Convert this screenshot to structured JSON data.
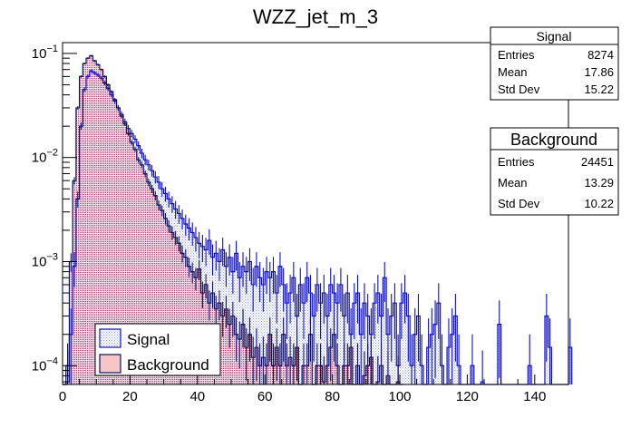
{
  "chart_data": {
    "type": "histogram",
    "title": "WZZ_jet_m_3",
    "xlabel": "",
    "ylabel": "",
    "xlim": [
      0,
      150
    ],
    "ylim": [
      6.6e-05,
      0.127
    ],
    "yscale": "log",
    "bin_width": 1,
    "x_ticks": [
      "0",
      "20",
      "40",
      "60",
      "80",
      "100",
      "120",
      "140"
    ],
    "x_tick_values": [
      0,
      20,
      40,
      60,
      80,
      100,
      120,
      140
    ],
    "y_ticks": [
      {
        "base": "10",
        "exp": "−1",
        "value": 0.1
      },
      {
        "base": "10",
        "exp": "−2",
        "value": 0.01
      },
      {
        "base": "10",
        "exp": "−3",
        "value": 0.001
      },
      {
        "base": "10",
        "exp": "−4",
        "value": 0.0001
      }
    ],
    "legend": {
      "placement": "bottom-left",
      "entries": [
        "Signal",
        "Background"
      ]
    },
    "series": [
      {
        "name": "Signal",
        "line_color": "#1010c0",
        "fill_color": "#8f9fff",
        "stats": {
          "title": "Signal",
          "rows": [
            {
              "label": "Entries",
              "value": "8274"
            },
            {
              "label": "Mean",
              "value": "17.86"
            },
            {
              "label": "Std Dev",
              "value": "15.22"
            }
          ]
        },
        "entries": 8274,
        "values": [
          0,
          7e-05,
          0.0002,
          0.0009,
          0.004,
          0.02,
          0.045,
          0.06,
          0.068,
          0.065,
          0.062,
          0.058,
          0.052,
          0.046,
          0.04,
          0.035,
          0.03,
          0.026,
          0.022,
          0.019,
          0.017,
          0.015,
          0.013,
          0.011,
          0.0095,
          0.0085,
          0.0075,
          0.0065,
          0.0058,
          0.005,
          0.0045,
          0.004,
          0.0036,
          0.0032,
          0.0029,
          0.0026,
          0.0023,
          0.0021,
          0.0019,
          0.0017,
          0.0015,
          0.0014,
          0.0013,
          0.0016,
          0.0011,
          0.0012,
          0.001,
          0.0013,
          0.0009,
          0.0011,
          0.0008,
          0.0012,
          0.0007,
          0.0009,
          0.0008,
          0.001,
          0.0006,
          0.0009,
          0.0007,
          0.0006,
          0.0008,
          0.0007,
          0.0008,
          0.0005,
          0.0009,
          0.0006,
          0.0004,
          0.0005,
          0.0007,
          0.0003,
          0.0006,
          0.0004,
          0.0007,
          0.0005,
          0.0003,
          0.0006,
          0.0004,
          0.0005,
          0.0003,
          0.0006,
          0.0005,
          0.0004,
          0.0006,
          0.0003,
          0.0005,
          0.0002,
          0.0004,
          0.0005,
          0.0002,
          0.0004,
          0.0003,
          0.0002,
          0.0004,
          0.0005,
          0.0003,
          0.0007,
          0.0002,
          0.0003,
          0.0004,
          0.0001,
          0.0004,
          0.0005,
          0.0003,
          0.0001,
          0.0002,
          0.0003,
          0.0001,
          0,
          0.00015,
          0.0002,
          0.00025,
          0.0004,
          0.0001,
          0,
          0.00015,
          0.0002,
          0.0003,
          0.0001,
          0,
          0,
          0,
          0.0001,
          0,
          0,
          7e-05,
          0,
          0,
          0,
          0,
          0.00025,
          0,
          0,
          0,
          0,
          0,
          0,
          0,
          0,
          0.0001,
          0,
          0,
          0,
          0,
          0.0003,
          0.00015,
          0,
          0,
          0,
          0,
          0,
          0.00015
        ]
      },
      {
        "name": "Background",
        "line_color": "#101060",
        "fill_color": "#e07070",
        "stats": {
          "title": "Background",
          "rows": [
            {
              "label": "Entries",
              "value": "24451"
            },
            {
              "label": "Mean",
              "value": "13.29"
            },
            {
              "label": "Std Dev",
              "value": "10.22"
            }
          ]
        },
        "entries": 24451,
        "values": [
          0,
          0.0001,
          0.001,
          0.006,
          0.03,
          0.06,
          0.08,
          0.09,
          0.095,
          0.085,
          0.078,
          0.07,
          0.06,
          0.05,
          0.043,
          0.036,
          0.03,
          0.025,
          0.021,
          0.017,
          0.014,
          0.012,
          0.0095,
          0.0085,
          0.007,
          0.0058,
          0.005,
          0.0043,
          0.0035,
          0.0031,
          0.0026,
          0.0022,
          0.0019,
          0.0017,
          0.0015,
          0.0012,
          0.0011,
          0.0009,
          0.0008,
          0.0007,
          0.00085,
          0.0005,
          0.0006,
          0.0004,
          0.0005,
          0.00035,
          0.0004,
          0.0003,
          0.00035,
          0.00025,
          0.0003,
          0.0002,
          0.00018,
          0.00025,
          0.00015,
          0.0002,
          0.00012,
          0.00015,
          0.0001,
          0.00012,
          0.0001,
          0.0002,
          0.0001,
          0.00015,
          0.0001,
          0.0002,
          0.0001,
          0.00012,
          0.0001,
          0.00015,
          0,
          0.0001,
          0.0001,
          0.0002,
          0,
          0.0001,
          0.0001,
          7e-05,
          0.0001,
          0.00015,
          0.0002,
          0.0001,
          0,
          0.0001,
          0.0001,
          0.00015,
          0,
          0.0001,
          0,
          8e-05,
          0.0001,
          0.00012,
          0,
          7e-05,
          0.0001,
          0,
          8e-05,
          0,
          0,
          7e-05,
          0
        ]
      }
    ]
  }
}
